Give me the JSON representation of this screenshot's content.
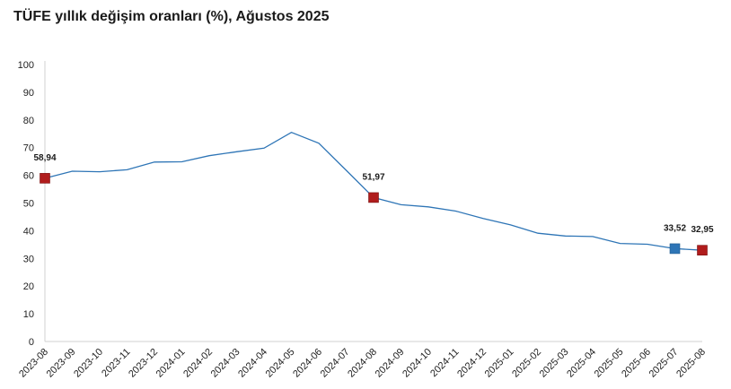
{
  "title": "TÜFE yıllık değişim oranları (%), Ağustos 2025",
  "chart_data": {
    "type": "line",
    "title": "TÜFE yıllık değişim oranları (%), Ağustos 2025",
    "xlabel": "",
    "ylabel": "",
    "ylim": [
      0,
      100
    ],
    "yticks": [
      0,
      10,
      20,
      30,
      40,
      50,
      60,
      70,
      80,
      90,
      100
    ],
    "grid": false,
    "line_color": "#2e75b6",
    "marker_colors": {
      "red": "#b01c1c",
      "blue": "#2e75b6"
    },
    "categories": [
      "2023-08",
      "2023-09",
      "2023-10",
      "2023-11",
      "2023-12",
      "2024-01",
      "2024-02",
      "2024-03",
      "2024-04",
      "2024-05",
      "2024-06",
      "2024-07",
      "2024-08",
      "2024-09",
      "2024-10",
      "2024-11",
      "2024-12",
      "2025-01",
      "2025-02",
      "2025-03",
      "2025-04",
      "2025-05",
      "2025-06",
      "2025-07",
      "2025-08"
    ],
    "series": [
      {
        "values": [
          58.94,
          61.5,
          61.3,
          62.0,
          64.8,
          64.9,
          67.1,
          68.5,
          69.8,
          75.5,
          71.6,
          61.8,
          51.97,
          49.4,
          48.6,
          47.1,
          44.4,
          42.1,
          39.1,
          38.1,
          37.9,
          35.4,
          35.1,
          33.52,
          32.95
        ]
      }
    ],
    "markers": [
      {
        "index": 0,
        "color": "red",
        "label": "58,94"
      },
      {
        "index": 12,
        "color": "red",
        "label": "51,97"
      },
      {
        "index": 23,
        "color": "blue",
        "label": "33,52"
      },
      {
        "index": 24,
        "color": "red",
        "label": "32,95"
      }
    ]
  }
}
